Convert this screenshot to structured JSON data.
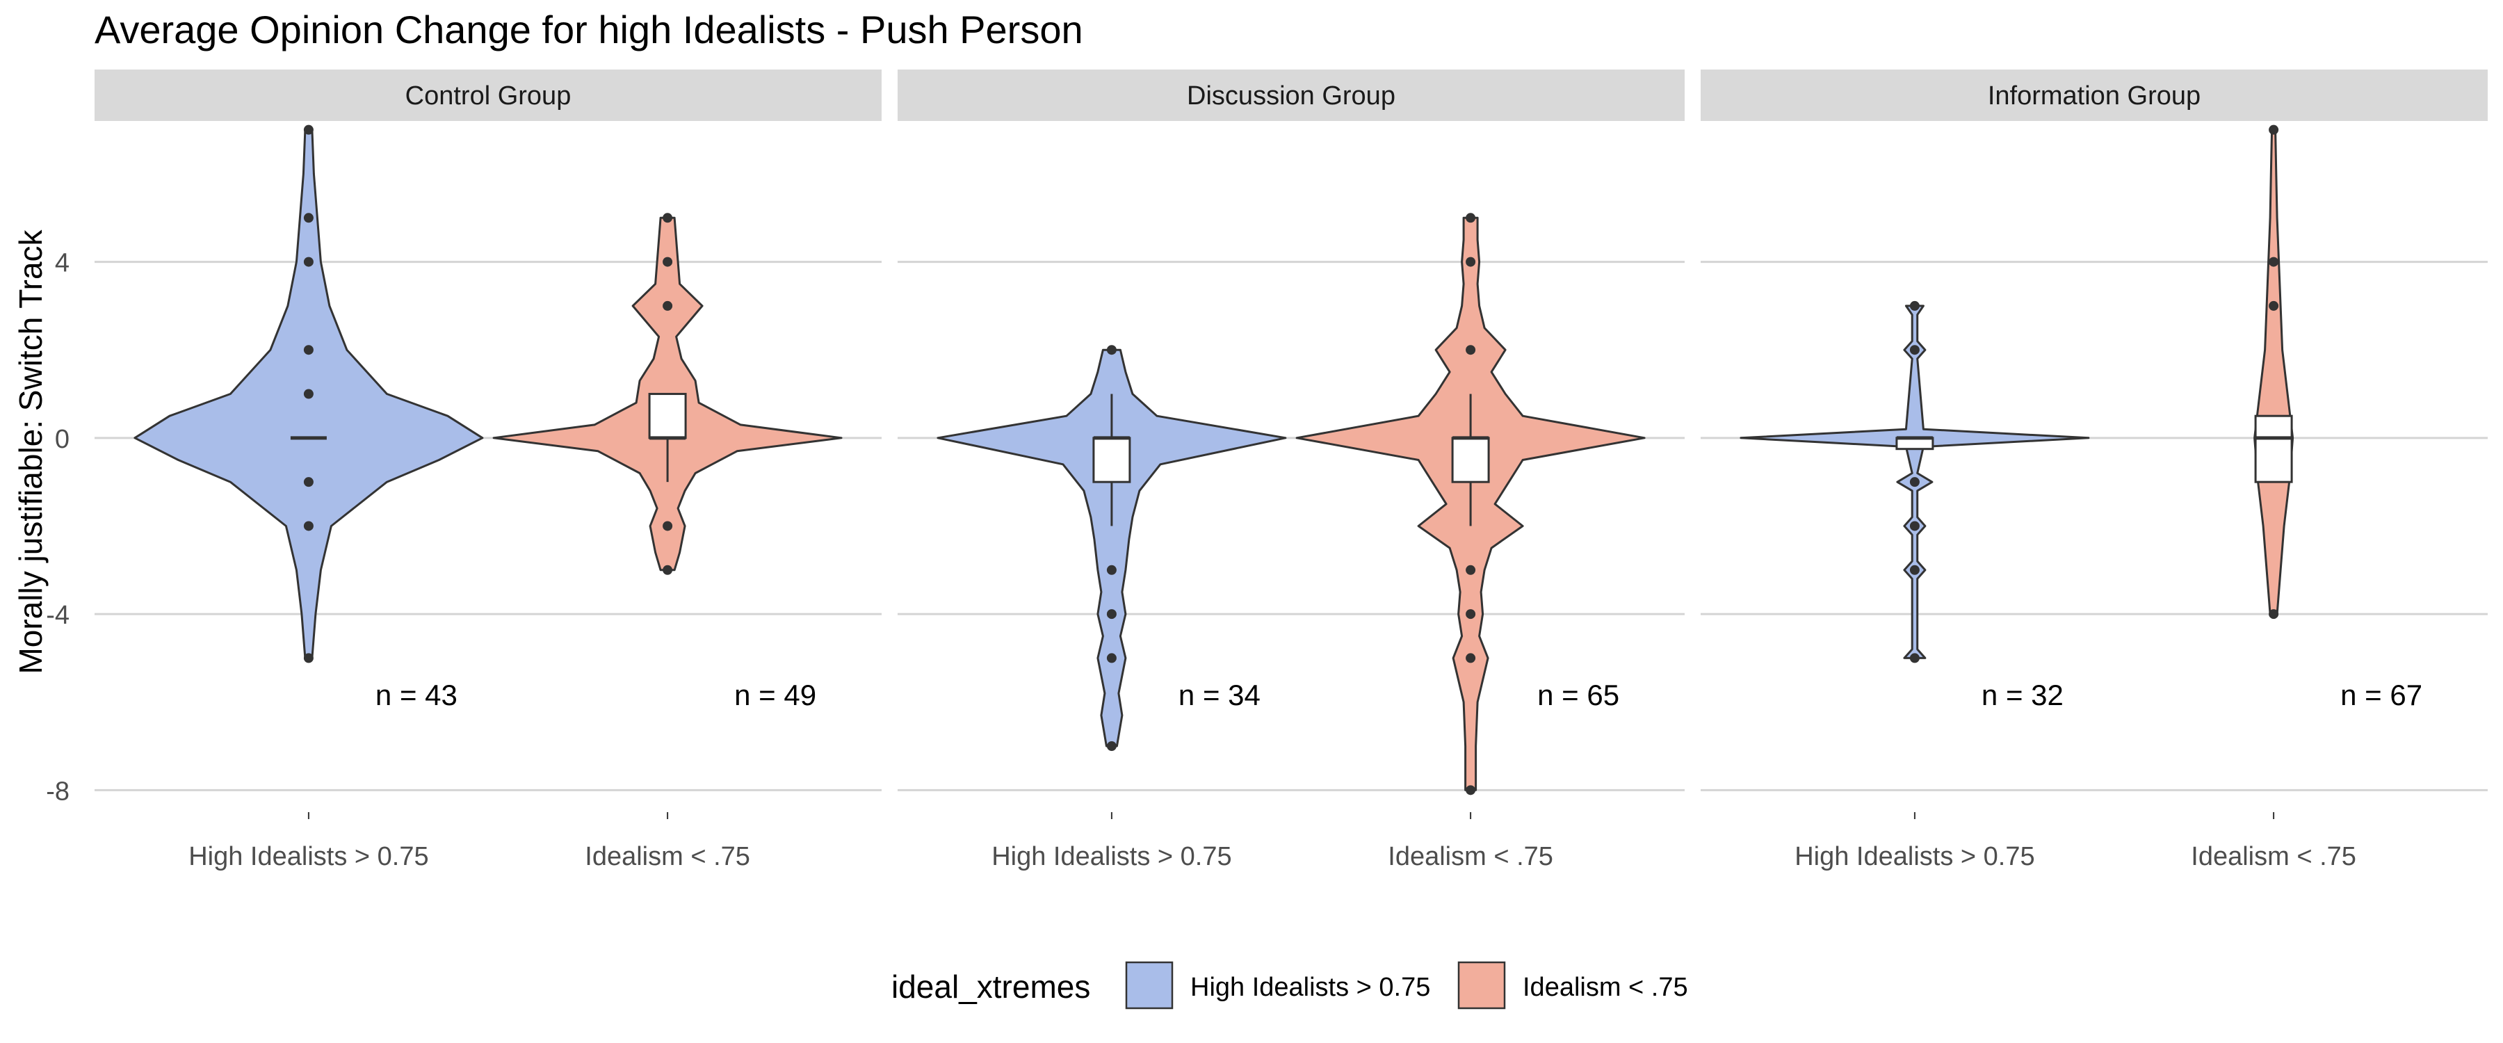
{
  "chart_data": {
    "type": "violin",
    "title": "Average Opinion Change for high Idealists - Push Person",
    "ylabel": "Morally justifiable: Switch Track",
    "xlabel": "",
    "ylim": [
      -8.5,
      7.2
    ],
    "yticks": [
      4,
      0,
      -4,
      -8
    ],
    "yticklabels": [
      "4",
      "0",
      "-4",
      "-8"
    ],
    "grid": true,
    "categories": [
      "High Idealists > 0.75",
      "Idealism < .75"
    ],
    "panels": [
      {
        "facet": "Control Group",
        "groups": [
          {
            "category": "High Idealists > 0.75",
            "n_label": "n = 43",
            "box": null,
            "median": 0,
            "outliers": [
              7,
              5,
              4,
              2,
              1,
              -1,
              -2,
              -5
            ],
            "density": [
              [
                -5,
                0.02
              ],
              [
                -4,
                0.04
              ],
              [
                -3,
                0.07
              ],
              [
                -2,
                0.13
              ],
              [
                -1,
                0.45
              ],
              [
                -0.5,
                0.75
              ],
              [
                0,
                1.0
              ],
              [
                0.5,
                0.8
              ],
              [
                1,
                0.45
              ],
              [
                2,
                0.22
              ],
              [
                3,
                0.12
              ],
              [
                4,
                0.07
              ],
              [
                5,
                0.05
              ],
              [
                6,
                0.03
              ],
              [
                7,
                0.02
              ]
            ]
          },
          {
            "category": "Idealism < .75",
            "n_label": "n = 49",
            "box": {
              "q1": 0,
              "median": 0,
              "q3": 1,
              "lower": -1,
              "upper": 1
            },
            "outliers": [
              5,
              4,
              3,
              -2,
              -3
            ],
            "density": [
              [
                -3,
                0.04
              ],
              [
                -2.6,
                0.07
              ],
              [
                -2,
                0.1
              ],
              [
                -1.6,
                0.06
              ],
              [
                -1.2,
                0.1
              ],
              [
                -0.8,
                0.16
              ],
              [
                -0.3,
                0.4
              ],
              [
                0,
                1.0
              ],
              [
                0.3,
                0.42
              ],
              [
                0.8,
                0.18
              ],
              [
                1.3,
                0.16
              ],
              [
                1.8,
                0.08
              ],
              [
                2.3,
                0.05
              ],
              [
                3,
                0.2
              ],
              [
                3.5,
                0.07
              ],
              [
                4,
                0.06
              ],
              [
                4.5,
                0.05
              ],
              [
                5,
                0.04
              ]
            ]
          }
        ]
      },
      {
        "facet": "Discussion Group",
        "groups": [
          {
            "category": "High Idealists > 0.75",
            "n_label": "n = 34",
            "box": {
              "q1": -1,
              "median": 0,
              "q3": 0,
              "lower": -2,
              "upper": 1
            },
            "outliers": [
              2,
              -3,
              -4,
              -5,
              -7
            ],
            "density": [
              [
                -7,
                0.03
              ],
              [
                -6.3,
                0.06
              ],
              [
                -5.8,
                0.04
              ],
              [
                -5,
                0.08
              ],
              [
                -4.5,
                0.05
              ],
              [
                -4,
                0.08
              ],
              [
                -3.5,
                0.06
              ],
              [
                -3,
                0.08
              ],
              [
                -2.3,
                0.1
              ],
              [
                -1.8,
                0.12
              ],
              [
                -1.2,
                0.16
              ],
              [
                -0.6,
                0.28
              ],
              [
                0,
                1.0
              ],
              [
                0.5,
                0.26
              ],
              [
                1,
                0.12
              ],
              [
                1.5,
                0.08
              ],
              [
                2,
                0.05
              ]
            ]
          },
          {
            "category": "Idealism < .75",
            "n_label": "n = 65",
            "box": {
              "q1": -1,
              "median": 0,
              "q3": 0,
              "lower": -2,
              "upper": 1
            },
            "outliers": [
              5,
              4,
              2,
              -3,
              -4,
              -5,
              -8
            ],
            "density": [
              [
                -8,
                0.03
              ],
              [
                -7,
                0.03
              ],
              [
                -6,
                0.04
              ],
              [
                -5,
                0.1
              ],
              [
                -4.5,
                0.05
              ],
              [
                -4,
                0.07
              ],
              [
                -3.5,
                0.06
              ],
              [
                -3,
                0.08
              ],
              [
                -2.5,
                0.12
              ],
              [
                -2,
                0.3
              ],
              [
                -1.5,
                0.14
              ],
              [
                -1,
                0.22
              ],
              [
                -0.5,
                0.3
              ],
              [
                0,
                1.0
              ],
              [
                0.5,
                0.3
              ],
              [
                1,
                0.2
              ],
              [
                1.5,
                0.12
              ],
              [
                2,
                0.2
              ],
              [
                2.5,
                0.08
              ],
              [
                3,
                0.05
              ],
              [
                3.5,
                0.04
              ],
              [
                4,
                0.05
              ],
              [
                4.5,
                0.04
              ],
              [
                5,
                0.04
              ]
            ]
          }
        ]
      },
      {
        "facet": "Information Group",
        "groups": [
          {
            "category": "High Idealists > 0.75",
            "n_label": "n = 32",
            "box": {
              "q1": -0.25,
              "median": 0,
              "q3": 0,
              "lower": -0.25,
              "upper": 0
            },
            "outliers": [
              3,
              2,
              -1,
              -2,
              -3,
              -5
            ],
            "density": [
              [
                -5,
                0.06
              ],
              [
                -4.8,
                0.015
              ],
              [
                -3.2,
                0.015
              ],
              [
                -3,
                0.06
              ],
              [
                -2.8,
                0.015
              ],
              [
                -2.2,
                0.015
              ],
              [
                -2,
                0.06
              ],
              [
                -1.8,
                0.015
              ],
              [
                -1.2,
                0.015
              ],
              [
                -1,
                0.1
              ],
              [
                -0.8,
                0.015
              ],
              [
                -0.2,
                0.05
              ],
              [
                0,
                1.0
              ],
              [
                0.2,
                0.05
              ],
              [
                1.8,
                0.015
              ],
              [
                2,
                0.06
              ],
              [
                2.2,
                0.015
              ],
              [
                2.8,
                0.015
              ],
              [
                3,
                0.05
              ]
            ]
          },
          {
            "category": "Idealism < .75",
            "n_label": "n = 67",
            "box": {
              "q1": -1,
              "median": 0,
              "q3": 0.5,
              "lower": -1,
              "upper": 0.5
            },
            "outliers": [
              7,
              4,
              3,
              -4
            ],
            "density": [
              [
                -4,
                0.02
              ],
              [
                -3,
                0.04
              ],
              [
                -2,
                0.06
              ],
              [
                -1,
                0.09
              ],
              [
                0,
                0.11
              ],
              [
                1,
                0.08
              ],
              [
                2,
                0.05
              ],
              [
                3,
                0.04
              ],
              [
                4,
                0.03
              ],
              [
                5,
                0.02
              ],
              [
                6,
                0.015
              ],
              [
                7,
                0.01
              ]
            ]
          }
        ]
      }
    ],
    "legend": {
      "title": "ideal_xtremes",
      "position": "bottom",
      "items": [
        {
          "label": "High Idealists > 0.75",
          "color": "#a9bde9"
        },
        {
          "label": "Idealism < .75",
          "color": "#f2ae9c"
        }
      ]
    },
    "colors": {
      "grid": "#d4d4d4",
      "strip": "#d9d9d9",
      "outline": "#333333",
      "points": "#333333"
    }
  }
}
